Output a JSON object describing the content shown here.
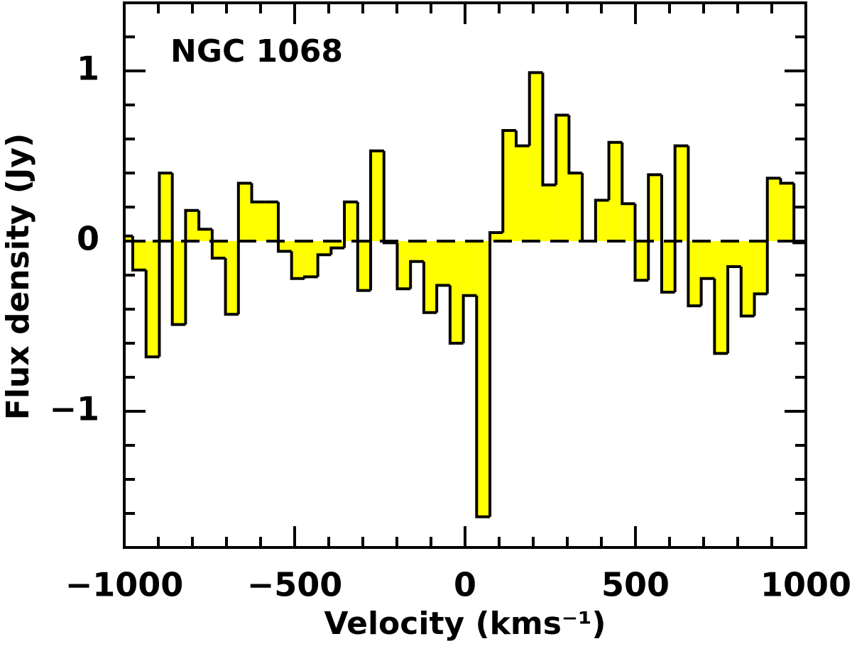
{
  "chart_data": {
    "type": "histogram",
    "annotation": "NGC 1068",
    "xlabel": "Velocity (kms⁻¹)",
    "ylabel": "Flux density (Jy)",
    "color": "#ffff00",
    "bins": [
      -1000,
      -975,
      -936,
      -897,
      -859,
      -820,
      -781,
      -742,
      -703,
      -665,
      -626,
      -587,
      -548,
      -509,
      -471,
      -432,
      -393,
      -354,
      -315,
      -277,
      -238,
      -199,
      -160,
      -121,
      -83,
      -44,
      -5,
      34,
      73,
      111,
      150,
      189,
      228,
      267,
      305,
      344,
      383,
      422,
      461,
      499,
      538,
      577,
      616,
      655,
      693,
      732,
      771,
      810,
      849,
      887,
      926,
      965,
      1000
    ],
    "values": [
      0.03,
      -0.17,
      -0.68,
      0.4,
      -0.49,
      0.18,
      0.07,
      -0.1,
      -0.43,
      0.34,
      0.23,
      0.23,
      -0.06,
      -0.22,
      -0.21,
      -0.08,
      -0.04,
      0.23,
      -0.29,
      0.53,
      -0.01,
      -0.28,
      -0.12,
      -0.42,
      -0.26,
      -0.6,
      -0.32,
      -1.62,
      0.05,
      0.65,
      0.56,
      0.99,
      0.33,
      0.74,
      0.4,
      0.0,
      0.24,
      0.58,
      0.22,
      -0.23,
      0.39,
      -0.3,
      0.56,
      -0.38,
      -0.22,
      -0.66,
      -0.15,
      -0.44,
      -0.31,
      0.37,
      0.34,
      -0.01
    ],
    "xlim": [
      -1000,
      1000
    ],
    "ylim": [
      -1.8,
      1.4
    ],
    "xticks": [
      {
        "value": -1000,
        "label": "−1000"
      },
      {
        "value": -500,
        "label": "−500"
      },
      0,
      500,
      1000
    ],
    "yticks": [
      {
        "value": -1,
        "label": "−1"
      },
      0,
      1
    ],
    "xminorticks": [
      -900,
      -800,
      -700,
      -600,
      -400,
      -300,
      -200,
      -100,
      100,
      200,
      300,
      400,
      600,
      700,
      800,
      900
    ],
    "yminorticks": [
      -1.6,
      -1.4,
      -1.2,
      -0.8,
      -0.6,
      -0.4,
      -0.2,
      0.2,
      0.4,
      0.6,
      0.8,
      1.2
    ],
    "zero_line": true,
    "grid": false
  }
}
